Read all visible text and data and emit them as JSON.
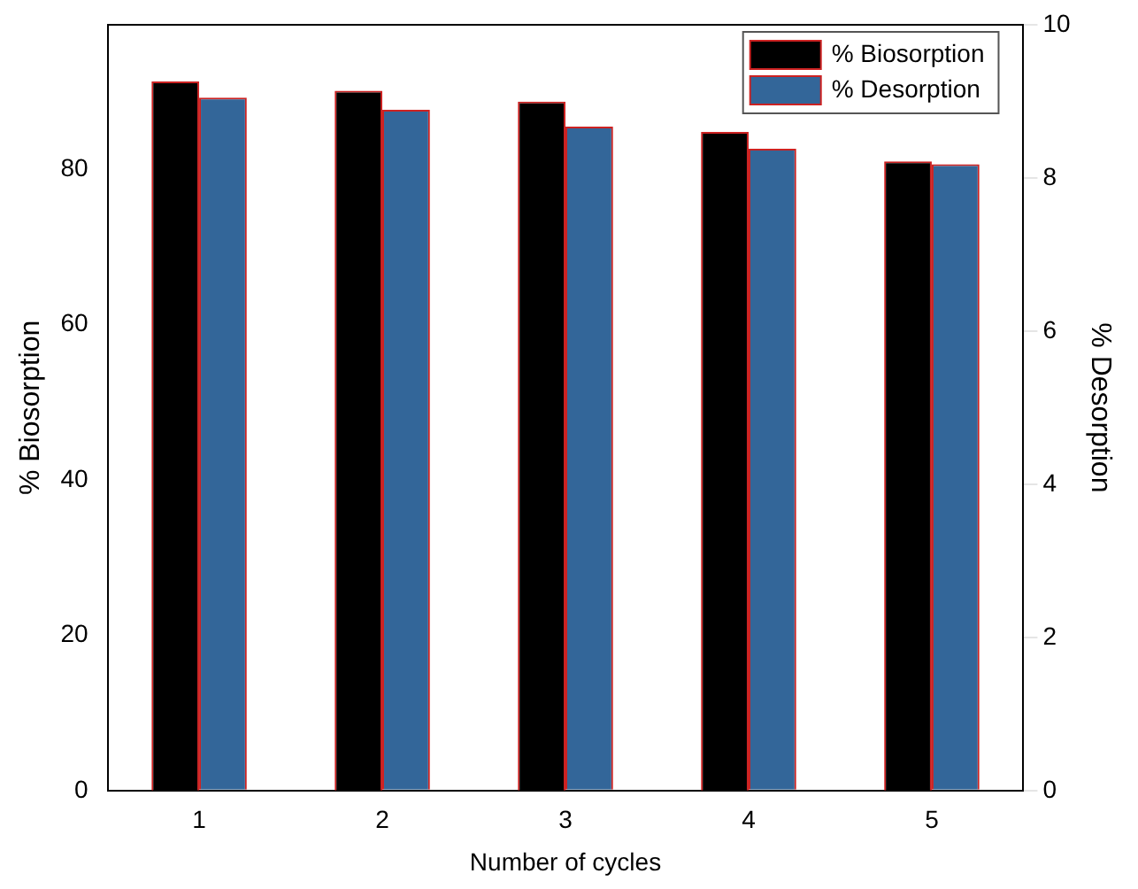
{
  "chart_data": {
    "type": "bar",
    "xlabel": "Number of cycles",
    "ylabel": "% Biosorption",
    "y2label": "% Desorption",
    "categories": [
      "1",
      "2",
      "3",
      "4",
      "5"
    ],
    "series": [
      {
        "name": "% Biosorption",
        "color": "#000000",
        "values": [
          91.3,
          90.1,
          88.7,
          84.8,
          81.0
        ]
      },
      {
        "name": "% Desorption",
        "color": "#336699",
        "axis": "y2",
        "values": [
          9.05,
          8.89,
          8.67,
          8.38,
          8.18
        ]
      }
    ],
    "ylim": [
      0,
      98.6
    ],
    "yticks": [
      0,
      20,
      40,
      60,
      80
    ],
    "y2lim": [
      0,
      10
    ],
    "y2ticks": [
      0,
      2,
      4,
      6,
      8,
      10
    ],
    "grid": false,
    "legend": "top right"
  }
}
